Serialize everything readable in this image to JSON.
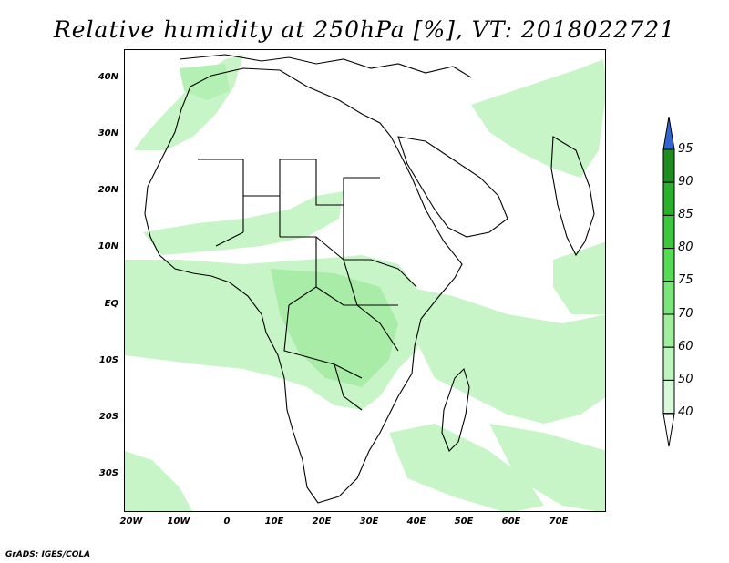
{
  "title": "Relative humidity at 250hPa [%], VT: 2018022721",
  "footer": "GrADS: IGES/COLA",
  "lat_labels": [
    "40N",
    "30N",
    "20N",
    "10N",
    "EQ",
    "10S",
    "20S",
    "30S"
  ],
  "lon_labels": [
    "20W",
    "10W",
    "0",
    "10E",
    "20E",
    "30E",
    "40E",
    "50E",
    "60E",
    "70E"
  ],
  "colorbar": {
    "levels": [
      "95",
      "90",
      "85",
      "80",
      "75",
      "70",
      "60",
      "50",
      "40"
    ],
    "colors": [
      "#1f8c1f",
      "#2bb02b",
      "#3cc83c",
      "#55dc55",
      "#7ae67a",
      "#9eee9e",
      "#bef4be",
      "#daf9da",
      "#f0fdf0"
    ],
    "over_color": "#3366cc",
    "under_color": "#ffffff"
  },
  "colors": {
    "humid_light": "#c8f5c8",
    "humid_mid": "#a8eca8",
    "coast": "#000000"
  }
}
